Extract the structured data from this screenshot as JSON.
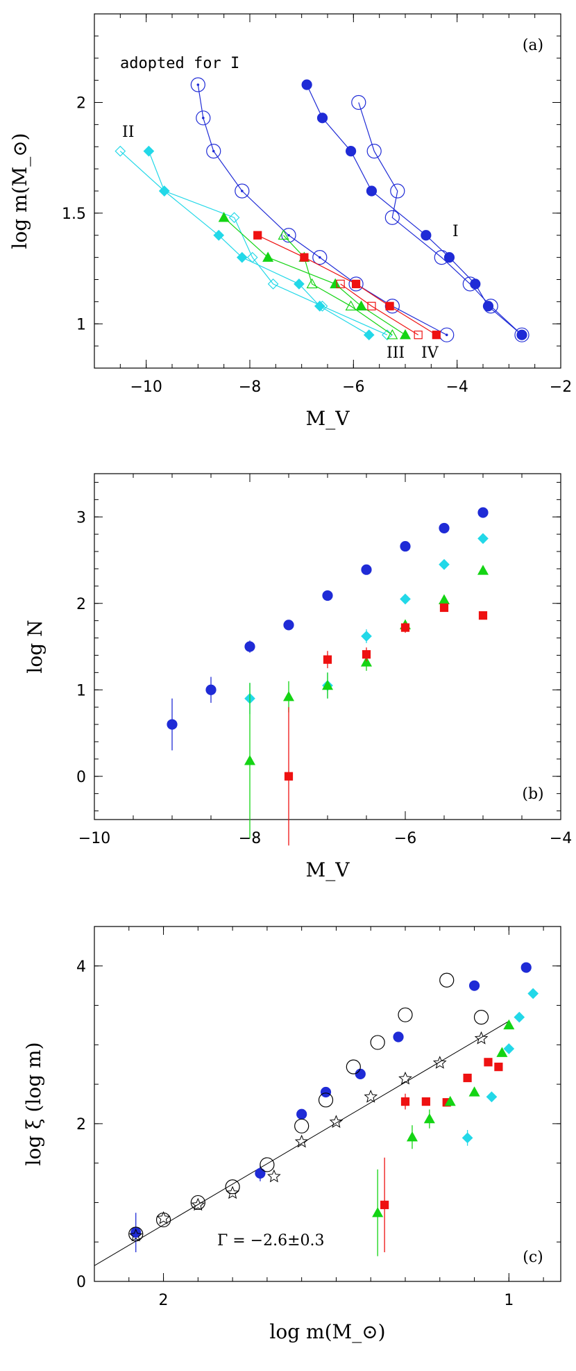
{
  "colors": {
    "blue": "#1f2bd6",
    "cyan": "#22d8e8",
    "green": "#14d414",
    "red": "#ee1111",
    "black": "#000000"
  },
  "chart_data": [
    {
      "type": "line",
      "panel_label": "(a)",
      "xlabel": "M_V",
      "ylabel": "log m(M_⊙)",
      "xlim": [
        -11,
        -2
      ],
      "ylim": [
        0.8,
        2.4
      ],
      "x_ticks": [
        -10,
        -8,
        -6,
        -4,
        -2
      ],
      "y_ticks": [
        1,
        1.5,
        2
      ],
      "annotations": [
        "adopted for I",
        "II",
        "I",
        "III",
        "IV"
      ],
      "series": [
        {
          "name": "I",
          "color": "blue",
          "marker": "circle-filled",
          "x": [
            -6.9,
            -6.6,
            -6.05,
            -5.65,
            -4.6,
            -4.15,
            -3.65,
            -3.4,
            -2.75
          ],
          "y": [
            2.08,
            1.93,
            1.78,
            1.6,
            1.4,
            1.3,
            1.18,
            1.08,
            0.95
          ]
        },
        {
          "name": "I",
          "color": "blue",
          "marker": "circle-open",
          "x": [
            -5.9,
            -5.6,
            -5.15,
            -5.25,
            -4.3,
            -3.75,
            -3.35,
            -2.75
          ],
          "y": [
            2.0,
            1.78,
            1.6,
            1.48,
            1.3,
            1.18,
            1.08,
            0.95
          ]
        },
        {
          "name": "adopted for I",
          "color": "blue",
          "marker": "circle-dot",
          "x": [
            -9.0,
            -8.9,
            -8.7,
            -8.15,
            -7.25,
            -6.65,
            -5.95,
            -5.25,
            -4.2
          ],
          "y": [
            2.08,
            1.93,
            1.78,
            1.6,
            1.4,
            1.3,
            1.18,
            1.08,
            0.95
          ]
        },
        {
          "name": "II",
          "color": "cyan",
          "marker": "diamond-filled",
          "x": [
            -9.95,
            -9.65,
            -8.6,
            -8.15,
            -7.05,
            -6.65,
            -5.7
          ],
          "y": [
            1.78,
            1.6,
            1.4,
            1.3,
            1.18,
            1.08,
            0.95
          ]
        },
        {
          "name": "II",
          "color": "cyan",
          "marker": "diamond-open",
          "x": [
            -10.5,
            -9.65,
            -8.3,
            -7.95,
            -7.55,
            -6.6,
            -5.35
          ],
          "y": [
            1.78,
            1.6,
            1.48,
            1.3,
            1.18,
            1.08,
            0.95
          ]
        },
        {
          "name": "III",
          "color": "green",
          "marker": "triangle-filled",
          "x": [
            -8.5,
            -7.65,
            -6.35,
            -5.85,
            -5.0
          ],
          "y": [
            1.48,
            1.3,
            1.18,
            1.08,
            0.95
          ]
        },
        {
          "name": "III",
          "color": "green",
          "marker": "triangle-open",
          "x": [
            -7.35,
            -6.95,
            -6.8,
            -6.05,
            -5.25
          ],
          "y": [
            1.4,
            1.3,
            1.18,
            1.08,
            0.95
          ]
        },
        {
          "name": "IV",
          "color": "red",
          "marker": "square-filled",
          "x": [
            -7.85,
            -6.95,
            -5.95,
            -5.3,
            -4.4
          ],
          "y": [
            1.4,
            1.3,
            1.18,
            1.08,
            0.95
          ]
        },
        {
          "name": "IV",
          "color": "red",
          "marker": "square-open",
          "x": [
            -6.25,
            -5.65,
            -4.75
          ],
          "y": [
            1.18,
            1.08,
            0.95
          ]
        }
      ]
    },
    {
      "type": "scatter",
      "panel_label": "(b)",
      "xlabel": "M_V",
      "ylabel": "log N",
      "xlim": [
        -10,
        -4
      ],
      "ylim": [
        -0.5,
        3.5
      ],
      "x_ticks": [
        -10,
        -8,
        -6,
        -4
      ],
      "y_ticks": [
        0,
        1,
        2,
        3
      ],
      "series": [
        {
          "color": "blue",
          "marker": "circle-filled",
          "x": [
            -9.0,
            -8.5,
            -8.0,
            -7.5,
            -7.0,
            -6.5,
            -6.0,
            -5.5,
            -5.0
          ],
          "y": [
            0.6,
            1.0,
            1.5,
            1.75,
            2.09,
            2.39,
            2.66,
            2.87,
            3.05
          ],
          "err": [
            0.3,
            0.15,
            0.07,
            0.04,
            0.03,
            0.02,
            0.02,
            0.01,
            0.01
          ]
        },
        {
          "color": "cyan",
          "marker": "diamond-filled",
          "x": [
            -8.0,
            -7.0,
            -6.5,
            -6.0,
            -5.5,
            -5.0
          ],
          "y": [
            0.9,
            1.05,
            1.62,
            2.05,
            2.45,
            2.75
          ],
          "err": [
            0.18,
            0.15,
            0.08,
            0.04,
            0.03,
            0.02
          ]
        },
        {
          "color": "green",
          "marker": "triangle-filled",
          "x": [
            -8.0,
            -7.5,
            -7.0,
            -6.5,
            -6.0,
            -5.5,
            -5.0
          ],
          "y": [
            0.18,
            0.92,
            1.05,
            1.32,
            1.75,
            2.04,
            2.38
          ],
          "err": [
            0.9,
            0.18,
            0.15,
            0.1,
            0.06,
            0.04,
            0.03
          ]
        },
        {
          "color": "red",
          "marker": "square-filled",
          "x": [
            -7.5,
            -7.0,
            -6.5,
            -6.0,
            -5.5,
            -5.0
          ],
          "y": [
            0.0,
            1.35,
            1.41,
            1.72,
            1.95,
            1.86
          ],
          "err": [
            0.8,
            0.1,
            0.08,
            0.06,
            0.04,
            0.03
          ]
        }
      ]
    },
    {
      "type": "scatter",
      "panel_label": "(c)",
      "xlabel": "log m(M_⊙)",
      "ylabel": "log ξ (log m)",
      "xlim": [
        2.2,
        0.85
      ],
      "ylim": [
        0,
        4.5
      ],
      "x_ticks": [
        2,
        1
      ],
      "y_ticks": [
        0,
        2,
        4
      ],
      "annotation": "Γ = −2.6±0.3",
      "fit_line": {
        "x": [
          2.2,
          1.0
        ],
        "y": [
          0.2,
          3.3
        ]
      },
      "series": [
        {
          "color": "blue",
          "marker": "circle-filled",
          "x": [
            2.08,
            1.72,
            1.6,
            1.53,
            1.43,
            1.32,
            1.1,
            0.95
          ],
          "y": [
            0.62,
            1.37,
            2.12,
            2.4,
            2.63,
            3.1,
            3.75,
            3.98
          ],
          "err": [
            0.25,
            0.1,
            0,
            0,
            0,
            0,
            0,
            0
          ]
        },
        {
          "color": "black",
          "marker": "circle-open",
          "x": [
            2.08,
            2.0,
            1.9,
            1.8,
            1.7,
            1.6,
            1.53,
            1.45,
            1.38,
            1.3,
            1.18,
            1.08
          ],
          "y": [
            0.6,
            0.78,
            1.0,
            1.2,
            1.48,
            1.97,
            2.3,
            2.72,
            3.03,
            3.38,
            3.82,
            3.35
          ]
        },
        {
          "color": "black",
          "marker": "star-open",
          "x": [
            2.08,
            2.0,
            1.9,
            1.8,
            1.68,
            1.6,
            1.5,
            1.4,
            1.3,
            1.2,
            1.08
          ],
          "y": [
            0.58,
            0.8,
            0.97,
            1.12,
            1.33,
            1.77,
            2.02,
            2.34,
            2.57,
            2.77,
            3.08
          ]
        },
        {
          "color": "red",
          "marker": "square-filled",
          "x": [
            1.36,
            1.3,
            1.24,
            1.18,
            1.12,
            1.06,
            1.03
          ],
          "y": [
            0.97,
            2.28,
            2.28,
            2.27,
            2.58,
            2.78,
            2.72
          ],
          "err": [
            0.6,
            0.1,
            0,
            0,
            0,
            0,
            0
          ]
        },
        {
          "color": "green",
          "marker": "triangle-filled",
          "x": [
            1.38,
            1.28,
            1.23,
            1.17,
            1.1,
            1.02,
            1.0
          ],
          "y": [
            0.87,
            1.83,
            2.06,
            2.28,
            2.4,
            2.9,
            3.25
          ],
          "err": [
            0.55,
            0.15,
            0.12,
            0,
            0,
            0,
            0
          ]
        },
        {
          "color": "cyan",
          "marker": "diamond-filled",
          "x": [
            1.12,
            1.05,
            1.0,
            0.97,
            0.93
          ],
          "y": [
            1.82,
            2.34,
            2.95,
            3.35,
            3.65
          ],
          "err": [
            0.1,
            0,
            0,
            0,
            0
          ]
        }
      ]
    }
  ]
}
